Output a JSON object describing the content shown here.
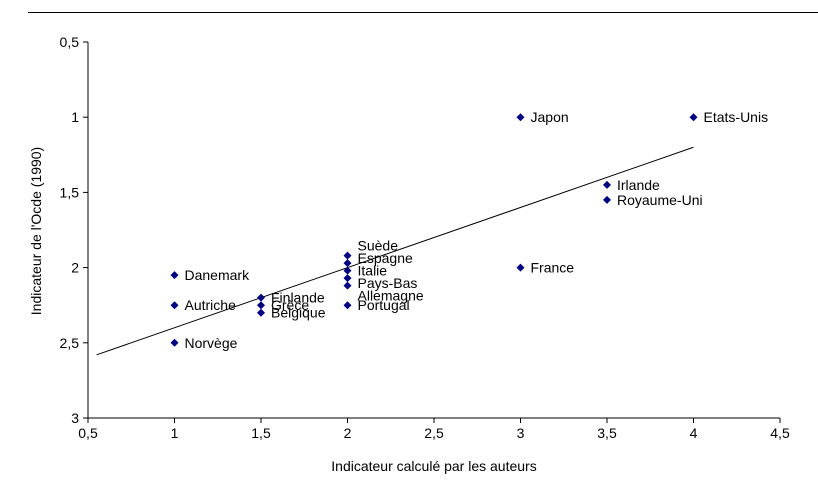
{
  "chart_data": {
    "type": "scatter",
    "title": "",
    "xlabel": "Indicateur calculé par les auteurs",
    "ylabel": "Indicateur de l'Ocde (1990)",
    "xlim": [
      0.5,
      4.5
    ],
    "ylim": [
      0.5,
      3
    ],
    "y_inverted": true,
    "grid": false,
    "legend": false,
    "axis_color": "#000000",
    "marker_color": "#000080",
    "trend_color": "#000000",
    "x_ticks": [
      0.5,
      1,
      1.5,
      2,
      2.5,
      3,
      3.5,
      4,
      4.5
    ],
    "x_tick_labels": [
      "0,5",
      "1",
      "1,5",
      "2",
      "2,5",
      "3",
      "3,5",
      "4",
      "4,5"
    ],
    "y_ticks": [
      0.5,
      1,
      1.5,
      2,
      2.5,
      3
    ],
    "y_tick_labels": [
      "0,5",
      "1",
      "1,5",
      "2",
      "2,5",
      "3"
    ],
    "points": [
      {
        "label": "Japon",
        "x": 3,
        "y": 1.0,
        "label_dy": 0
      },
      {
        "label": "Etats-Unis",
        "x": 4,
        "y": 1.0,
        "label_dy": 0
      },
      {
        "label": "Irlande",
        "x": 3.5,
        "y": 1.45,
        "label_dy": 0
      },
      {
        "label": "Royaume-Uni",
        "x": 3.5,
        "y": 1.55,
        "label_dy": 0
      },
      {
        "label": "France",
        "x": 3,
        "y": 2.0,
        "label_dy": 0
      },
      {
        "label": "Suède",
        "x": 2,
        "y": 1.92,
        "label_dy": -10
      },
      {
        "label": "Espagne",
        "x": 2,
        "y": 1.97,
        "label_dy": -5
      },
      {
        "label": "Italie",
        "x": 2,
        "y": 2.02,
        "label_dy": 0
      },
      {
        "label": "Pays-Bas",
        "x": 2,
        "y": 2.07,
        "label_dy": 5
      },
      {
        "label": "Allemagne",
        "x": 2,
        "y": 2.12,
        "label_dy": 10
      },
      {
        "label": "Danemark",
        "x": 1,
        "y": 2.05,
        "label_dy": 0
      },
      {
        "label": "Finlande",
        "x": 1.5,
        "y": 2.2,
        "label_dy": 0
      },
      {
        "label": "Grèce",
        "x": 1.5,
        "y": 2.25,
        "label_dy": 0
      },
      {
        "label": "Belgique",
        "x": 1.5,
        "y": 2.3,
        "label_dy": 0
      },
      {
        "label": "Autriche",
        "x": 1,
        "y": 2.25,
        "label_dy": 0
      },
      {
        "label": "Portugal",
        "x": 2,
        "y": 2.25,
        "label_dy": 0
      },
      {
        "label": "Norvège",
        "x": 1,
        "y": 2.5,
        "label_dy": 0
      }
    ],
    "trend_line": {
      "x1": 0.55,
      "y1": 2.58,
      "x2": 4.0,
      "y2": 1.2
    }
  }
}
